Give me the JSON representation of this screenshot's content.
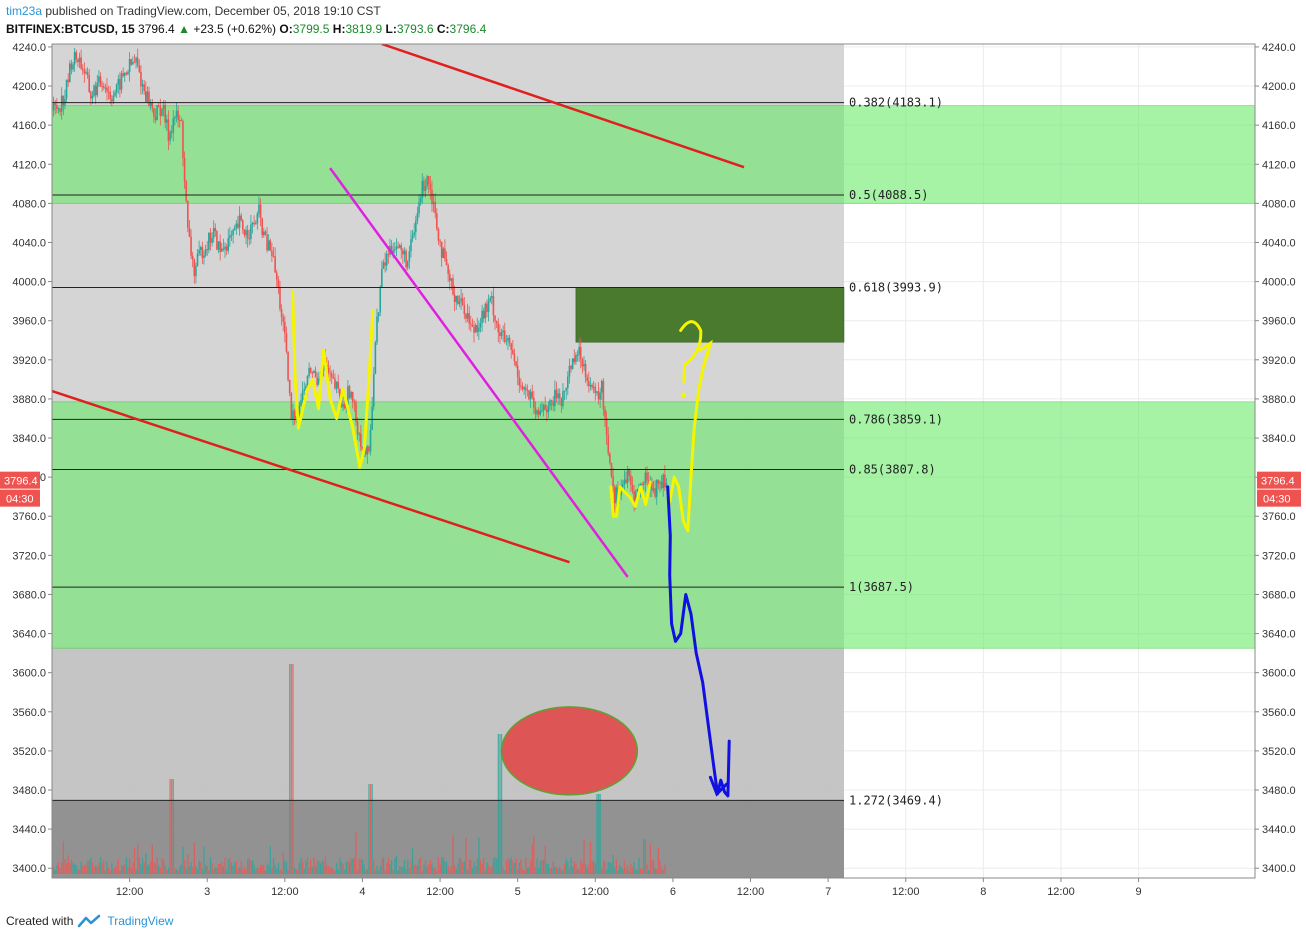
{
  "header": {
    "author": "tim23a",
    "published": "published on TradingView.com, December 05, 2018 19:10 CST",
    "symbol": "BITFINEX:BTCUSD, 15",
    "last": "3796.4",
    "arrow": "▲",
    "change": "+23.5 (+0.62%)",
    "o_label": "O:",
    "o_value": "3799.5",
    "h_label": "H:",
    "h_value": "3819.9",
    "l_label": "L:",
    "l_value": "3793.6",
    "c_label": "C:",
    "c_value": "3796.4"
  },
  "footer": {
    "created_with": "Created with",
    "brand": "TradingView"
  },
  "chart_data": {
    "type": "candlestick",
    "symbol": "BITFINEX:BTCUSD",
    "interval": "15",
    "ylim": [
      3390,
      4243
    ],
    "y_ticks": [
      3400,
      3440,
      3480,
      3520,
      3560,
      3600,
      3640,
      3680,
      3720,
      3760,
      3800,
      3840,
      3880,
      3920,
      3960,
      4000,
      4040,
      4080,
      4120,
      4160,
      4200,
      4240
    ],
    "y_tick_labels": [
      "3400.0",
      "3440.0",
      "3480.0",
      "3520.0",
      "3560.0",
      "3600.0",
      "3640.0",
      "3680.0",
      "3720.0",
      "3760.0",
      "3800.0",
      "3840.0",
      "3880.0",
      "3920.0",
      "3960.0",
      "4000.0",
      "4040.0",
      "4080.0",
      "4120.0",
      "4160.0",
      "4200.0",
      "4240.0"
    ],
    "x_domain_hours": [
      0,
      186
    ],
    "x_ticks": [
      {
        "h": 12,
        "label": "12:00"
      },
      {
        "h": 24,
        "label": "3"
      },
      {
        "h": 36,
        "label": "12:00"
      },
      {
        "h": 48,
        "label": "4"
      },
      {
        "h": 60,
        "label": "12:00"
      },
      {
        "h": 72,
        "label": "5"
      },
      {
        "h": 84,
        "label": "12:00"
      },
      {
        "h": 96,
        "label": "6"
      },
      {
        "h": 108,
        "label": "12:00"
      },
      {
        "h": 120,
        "label": "7"
      },
      {
        "h": 132,
        "label": "12:00"
      },
      {
        "h": 144,
        "label": "8"
      },
      {
        "h": 156,
        "label": "12:00"
      },
      {
        "h": 168,
        "label": "9"
      }
    ],
    "price_label": {
      "value": 3796.4,
      "text": "3796.4",
      "countdown": "04:30"
    },
    "price_path": [
      [
        0,
        4175
      ],
      [
        1,
        4180
      ],
      [
        2,
        4190
      ],
      [
        3,
        4225
      ],
      [
        4,
        4230
      ],
      [
        5,
        4215
      ],
      [
        6,
        4190
      ],
      [
        7,
        4200
      ],
      [
        8,
        4205
      ],
      [
        9,
        4190
      ],
      [
        10,
        4195
      ],
      [
        11,
        4210
      ],
      [
        12,
        4220
      ],
      [
        13,
        4225
      ],
      [
        14,
        4200
      ],
      [
        15,
        4185
      ],
      [
        16,
        4170
      ],
      [
        17,
        4180
      ],
      [
        18,
        4150
      ],
      [
        19,
        4170
      ],
      [
        20,
        4160
      ],
      [
        21,
        4050
      ],
      [
        22,
        4010
      ],
      [
        23,
        4030
      ],
      [
        24,
        4040
      ],
      [
        25,
        4050
      ],
      [
        26,
        4030
      ],
      [
        27,
        4040
      ],
      [
        28,
        4045
      ],
      [
        29,
        4060
      ],
      [
        30,
        4050
      ],
      [
        31,
        4055
      ],
      [
        32,
        4070
      ],
      [
        33,
        4040
      ],
      [
        34,
        4030
      ],
      [
        35,
        3990
      ],
      [
        36,
        3940
      ],
      [
        37,
        3860
      ],
      [
        38,
        3870
      ],
      [
        39,
        3890
      ],
      [
        40,
        3910
      ],
      [
        41,
        3900
      ],
      [
        42,
        3920
      ],
      [
        43,
        3900
      ],
      [
        44,
        3890
      ],
      [
        45,
        3870
      ],
      [
        46,
        3890
      ],
      [
        47,
        3860
      ],
      [
        48,
        3830
      ],
      [
        49,
        3820
      ],
      [
        50,
        3940
      ],
      [
        51,
        4010
      ],
      [
        52,
        4030
      ],
      [
        53,
        4040
      ],
      [
        54,
        4030
      ],
      [
        55,
        4020
      ],
      [
        56,
        4050
      ],
      [
        57,
        4090
      ],
      [
        58,
        4110
      ],
      [
        59,
        4080
      ],
      [
        60,
        4040
      ],
      [
        61,
        4010
      ],
      [
        62,
        3990
      ],
      [
        63,
        3980
      ],
      [
        64,
        3970
      ],
      [
        65,
        3950
      ],
      [
        66,
        3960
      ],
      [
        67,
        3970
      ],
      [
        68,
        3980
      ],
      [
        69,
        3950
      ],
      [
        70,
        3940
      ],
      [
        71,
        3930
      ],
      [
        72,
        3905
      ],
      [
        73,
        3890
      ],
      [
        74,
        3880
      ],
      [
        75,
        3860
      ],
      [
        76,
        3875
      ],
      [
        77,
        3870
      ],
      [
        78,
        3885
      ],
      [
        79,
        3880
      ],
      [
        80,
        3910
      ],
      [
        81,
        3930
      ],
      [
        82,
        3920
      ],
      [
        83,
        3900
      ],
      [
        84,
        3880
      ],
      [
        85,
        3890
      ],
      [
        86,
        3830
      ],
      [
        87,
        3780
      ],
      [
        88,
        3790
      ],
      [
        89,
        3800
      ],
      [
        90,
        3780
      ],
      [
        91,
        3790
      ],
      [
        92,
        3800
      ],
      [
        93,
        3785
      ],
      [
        94,
        3795
      ],
      [
        95,
        3796
      ]
    ],
    "volume_max_scale": 100,
    "fib_levels": [
      {
        "ratio": "0.382",
        "value": 4183.1,
        "label": "0.382(4183.1)"
      },
      {
        "ratio": "0.5",
        "value": 4088.5,
        "label": "0.5(4088.5)"
      },
      {
        "ratio": "0.618",
        "value": 3993.9,
        "label": "0.618(3993.9)"
      },
      {
        "ratio": "0.786",
        "value": 3859.1,
        "label": "0.786(3859.1)"
      },
      {
        "ratio": "0.85",
        "value": 3807.8,
        "label": "0.85(3807.8)"
      },
      {
        "ratio": "1",
        "value": 3687.5,
        "label": "1(3687.5)"
      },
      {
        "ratio": "1.272",
        "value": 3469.4,
        "label": "1.272(3469.4)"
      }
    ],
    "zones": [
      {
        "name": "upper-green-zone",
        "from": 4080,
        "to": 4180,
        "color": "#5fea5f"
      },
      {
        "name": "lower-green-zone",
        "from": 3625,
        "to": 3877,
        "color": "#5fea5f"
      },
      {
        "name": "target-box",
        "h_from": 81,
        "h_to": 95,
        "from": 3938,
        "to": 3994,
        "color": "#4a7a2e"
      }
    ],
    "trendlines": [
      {
        "name": "upper-red-trendline",
        "color": "#e0201e",
        "points": [
          [
            51,
            4243
          ],
          [
            107,
            4117
          ]
        ]
      },
      {
        "name": "lower-red-trendline",
        "color": "#e0201e",
        "points": [
          [
            0,
            3888
          ],
          [
            80,
            3713
          ]
        ]
      },
      {
        "name": "magenta-trendline",
        "color": "#e020e0",
        "points": [
          [
            43,
            4116
          ],
          [
            89,
            3698
          ]
        ]
      }
    ],
    "target_ellipse": {
      "h_center": 80,
      "value_center": 3520,
      "h_radius": 10.5,
      "value_radius": 45,
      "color": "#e05050"
    },
    "colors": {
      "up": "#26a69a",
      "down": "#ef5350",
      "fib_line": "#222222",
      "shade_light": "#d3d3d3",
      "shade_mid": "#c2c2c2",
      "shade_dark": "#8c8c8c",
      "forecast_blue": "#1010e0",
      "forecast_yellow": "#f5f500",
      "last_price": "#ef5350"
    }
  }
}
